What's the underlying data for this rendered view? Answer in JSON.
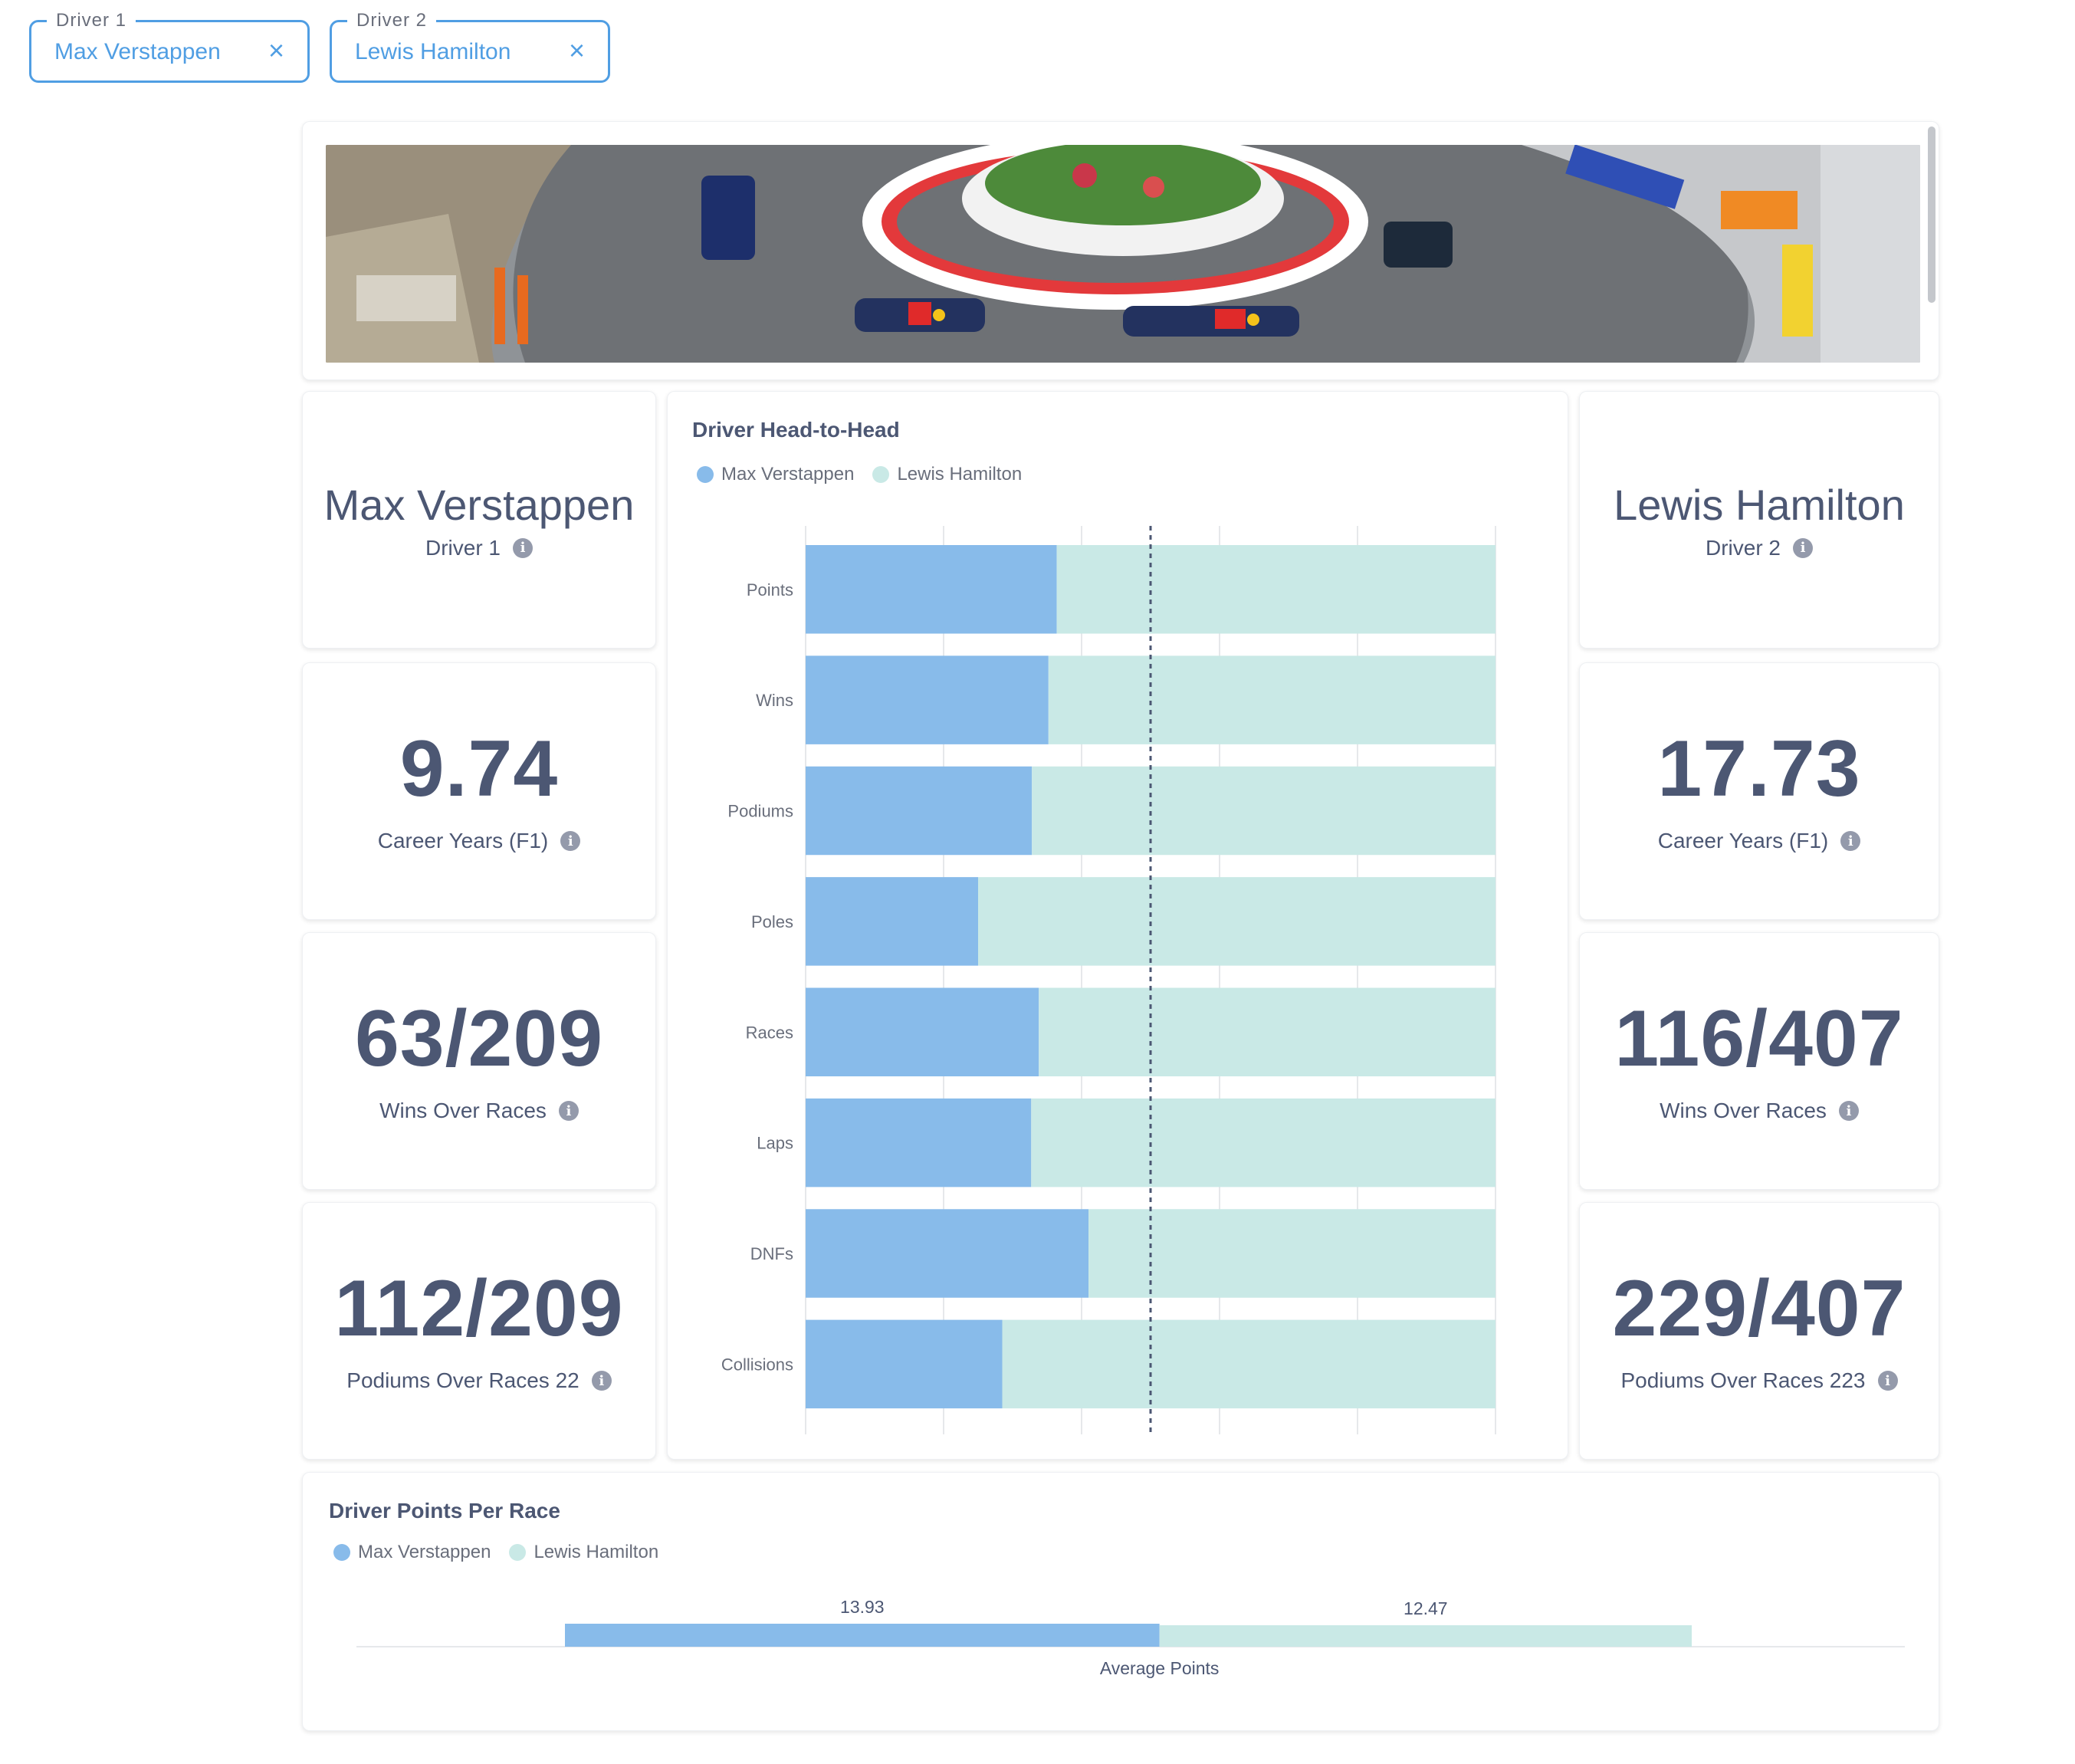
{
  "filters": [
    {
      "label": "Driver 1",
      "value": "Max Verstappen"
    },
    {
      "label": "Driver 2",
      "value": "Lewis Hamilton"
    }
  ],
  "icons": {
    "clear": "close-icon",
    "info": "info-icon"
  },
  "info_glyph": "i",
  "clear_glyph": "×",
  "colors": {
    "driver1": "#88bbea",
    "driver2": "#c9e9e6",
    "text": "#4c5773",
    "accent": "#509ee3"
  },
  "driver1": {
    "name": "Max Verstappen",
    "role": "Driver 1",
    "career_years": "9.74",
    "career_years_label": "Career Years (F1)",
    "wins_over_races": "63/209",
    "wins_over_races_label": "Wins Over Races",
    "podiums_over_races": "112/209",
    "podiums_over_races_label": "Podiums Over Races 22"
  },
  "driver2": {
    "name": "Lewis Hamilton",
    "role": "Driver 2",
    "career_years": "17.73",
    "career_years_label": "Career Years (F1)",
    "wins_over_races": "116/407",
    "wins_over_races_label": "Wins Over Races",
    "podiums_over_races": "229/407",
    "podiums_over_races_label": "Podiums Over Races 223"
  },
  "chart_data": [
    {
      "type": "bar",
      "orientation": "horizontal",
      "stacked": "percent",
      "title": "Driver Head-to-Head",
      "categories": [
        "Points",
        "Wins",
        "Podiums",
        "Poles",
        "Races",
        "Laps",
        "DNFs",
        "Collisions"
      ],
      "series": [
        {
          "name": "Max Verstappen",
          "values": [
            0.364,
            0.352,
            0.328,
            0.25,
            0.338,
            0.327,
            0.41,
            0.285
          ]
        },
        {
          "name": "Lewis Hamilton",
          "values": [
            0.636,
            0.648,
            0.672,
            0.75,
            0.662,
            0.673,
            0.59,
            0.715
          ]
        }
      ],
      "xlim": [
        0,
        1
      ],
      "reference_line": 0.5,
      "legend": "top-left",
      "grid": true
    },
    {
      "type": "bar",
      "orientation": "horizontal",
      "stacked": true,
      "title": "Driver Points Per Race",
      "categories": [
        "Average Points"
      ],
      "series": [
        {
          "name": "Max Verstappen",
          "values": [
            13.93
          ]
        },
        {
          "name": "Lewis Hamilton",
          "values": [
            12.47
          ]
        }
      ],
      "data_labels": [
        "13.93",
        "12.47"
      ],
      "legend": "top-left"
    }
  ]
}
